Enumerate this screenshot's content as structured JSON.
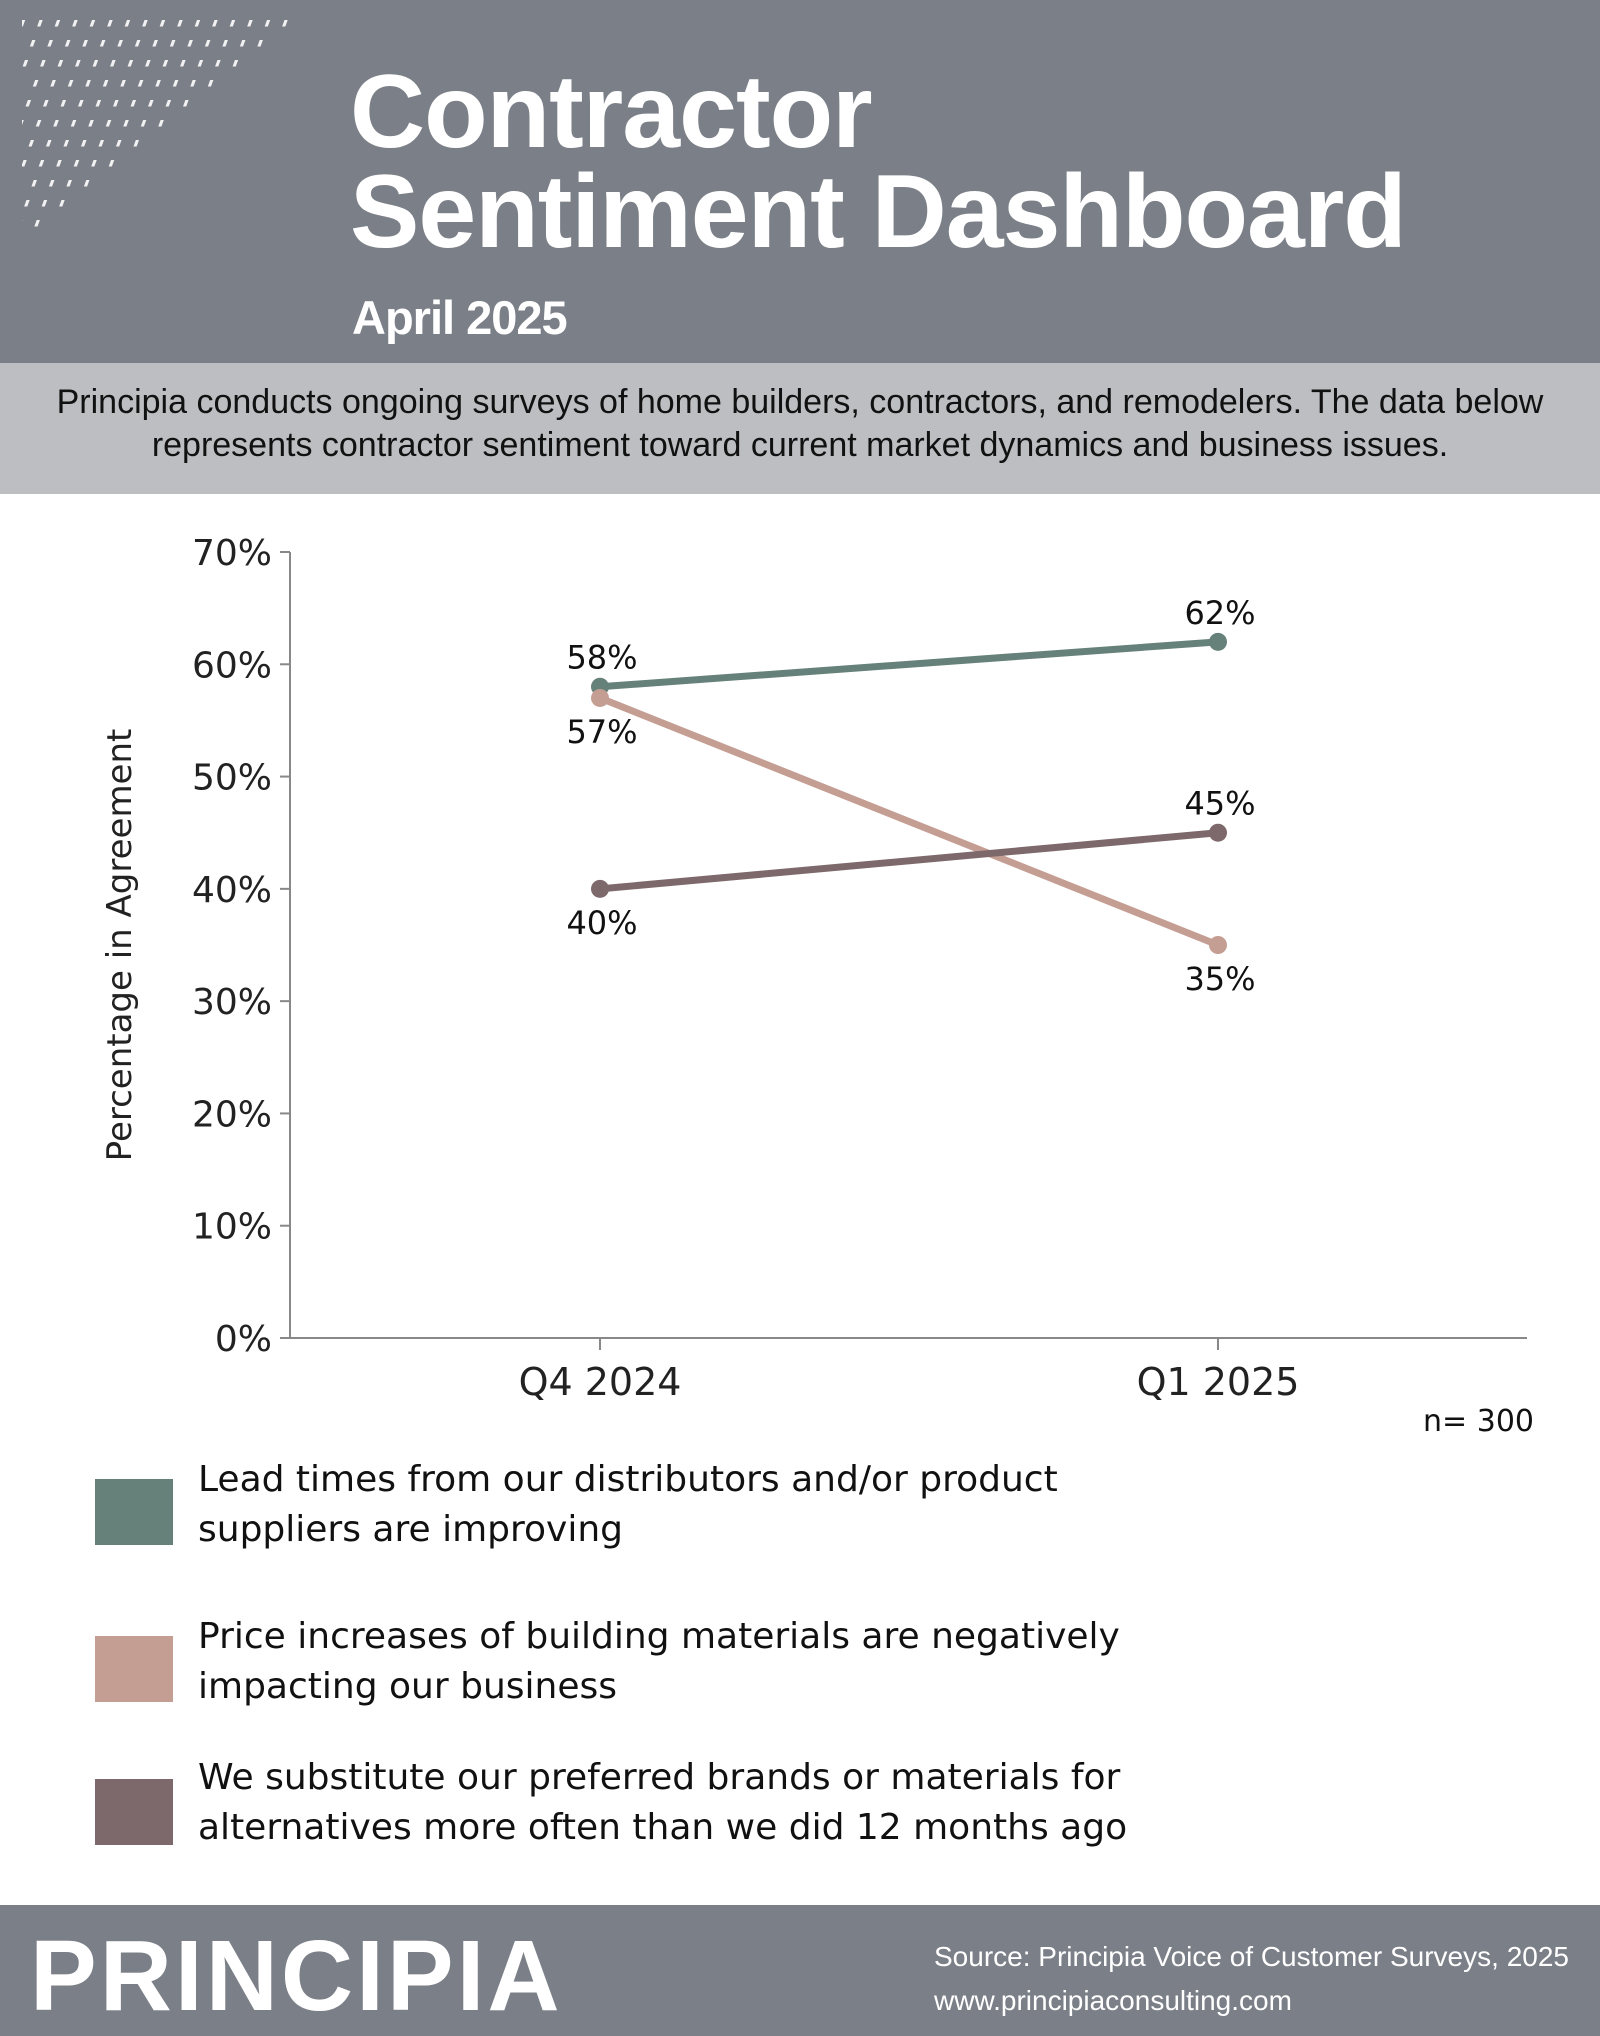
{
  "header": {
    "title_line1": "Contractor",
    "title_line2": "Sentiment Dashboard",
    "subtitle": "April 2025"
  },
  "intro": {
    "text": "Principia conducts ongoing surveys of home builders, contractors, and remodelers. The data below represents contractor sentiment toward current market dynamics and business issues."
  },
  "chart_data": {
    "type": "line",
    "x": [
      "Q4 2024",
      "Q1 2025"
    ],
    "ylabel": "Percentage in Agreement",
    "ylim": [
      0,
      70
    ],
    "yticks": [
      "0%",
      "10%",
      "20%",
      "30%",
      "40%",
      "50%",
      "60%",
      "70%"
    ],
    "grid": false,
    "note": "n= 300",
    "series": [
      {
        "name": "Lead times from our distributors and/or product suppliers are improving",
        "values": [
          58,
          62
        ],
        "labels": [
          "58%",
          "62%"
        ],
        "color": "#66807a"
      },
      {
        "name": "Price increases of building materials are negatively impacting our business",
        "values": [
          57,
          35
        ],
        "labels": [
          "57%",
          "35%"
        ],
        "color": "#c59e93"
      },
      {
        "name": "We substitute our preferred brands or materials for alternatives more often than we did 12 months ago",
        "values": [
          40,
          45
        ],
        "labels": [
          "40%",
          "45%"
        ],
        "color": "#7d686b"
      }
    ]
  },
  "legend": {
    "items": [
      {
        "line1": "Lead times from our distributors and/or product",
        "line2": "suppliers are improving",
        "color": "#66807a"
      },
      {
        "line1": "Price increases of building materials are negatively",
        "line2": "impacting our business",
        "color": "#c59e93"
      },
      {
        "line1": "We substitute our preferred brands or materials for",
        "line2": "alternatives more often than we did 12 months ago",
        "color": "#7d686b"
      }
    ]
  },
  "footer": {
    "logo": "PRINCIPIA",
    "source": "Source: Principia Voice of Customer Surveys, 2025",
    "website": "www.principiaconsulting.com"
  },
  "colors": {
    "header_bg": "#7b7f87",
    "intro_bg": "#bdbec2",
    "axis": "#888888"
  }
}
